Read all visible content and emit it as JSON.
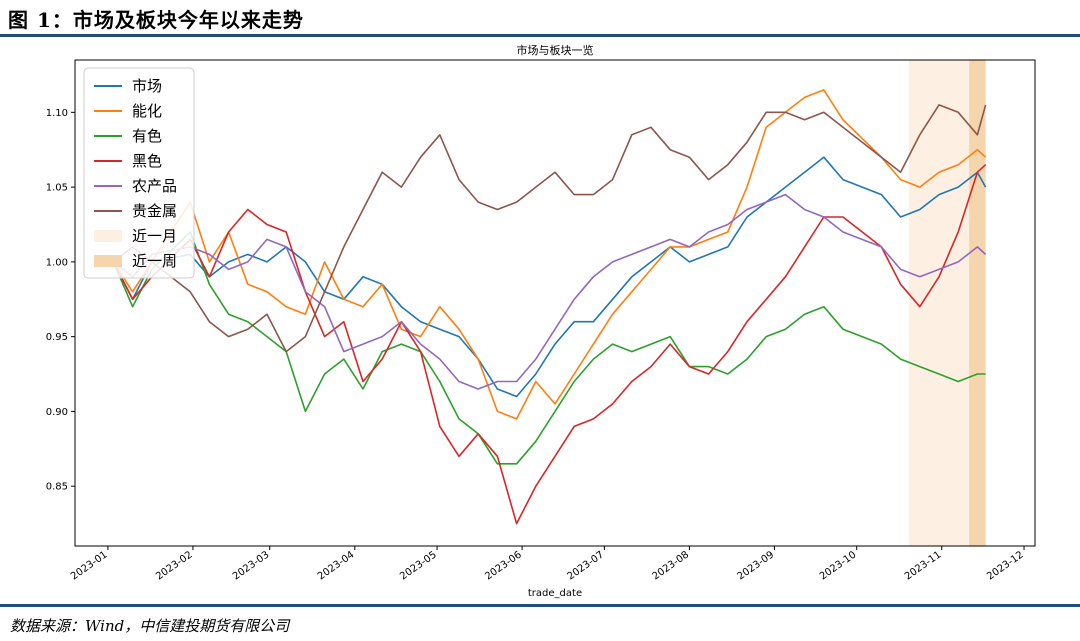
{
  "header": {
    "figure_title": "图 1：市场及板块今年以来走势"
  },
  "footer": {
    "source": "数据来源：Wind，中信建投期货有限公司"
  },
  "chart_data": {
    "type": "line",
    "title": "市场与板块一览",
    "xlabel": "trade_date",
    "ylabel": "",
    "x_ticks": [
      "2023-01",
      "2023-02",
      "2023-03",
      "2023-04",
      "2023-05",
      "2023-06",
      "2023-07",
      "2023-08",
      "2023-09",
      "2023-10",
      "2023-11",
      "2023-12"
    ],
    "y_ticks": [
      "0.85",
      "0.90",
      "0.95",
      "1.00",
      "1.05",
      "1.10"
    ],
    "ylim": [
      0.81,
      1.135
    ],
    "xlim": [
      "2022-12-20",
      "2023-12-05"
    ],
    "grid": false,
    "legend_position": "top-left",
    "x": [
      "2023-01-03",
      "2023-01-10",
      "2023-01-17",
      "2023-01-31",
      "2023-02-07",
      "2023-02-14",
      "2023-02-21",
      "2023-02-28",
      "2023-03-07",
      "2023-03-14",
      "2023-03-21",
      "2023-03-28",
      "2023-04-04",
      "2023-04-11",
      "2023-04-18",
      "2023-04-25",
      "2023-05-02",
      "2023-05-09",
      "2023-05-16",
      "2023-05-23",
      "2023-05-30",
      "2023-06-06",
      "2023-06-13",
      "2023-06-20",
      "2023-06-27",
      "2023-07-04",
      "2023-07-11",
      "2023-07-18",
      "2023-07-25",
      "2023-08-01",
      "2023-08-08",
      "2023-08-15",
      "2023-08-22",
      "2023-08-29",
      "2023-09-05",
      "2023-09-12",
      "2023-09-19",
      "2023-09-26",
      "2023-10-10",
      "2023-10-17",
      "2023-10-24",
      "2023-10-31",
      "2023-11-07",
      "2023-11-14",
      "2023-11-17"
    ],
    "series": [
      {
        "name": "市场",
        "color": "#1f77b4",
        "values": [
          1.0,
          0.975,
          1.0,
          1.005,
          0.99,
          1.0,
          1.005,
          1.0,
          1.01,
          1.0,
          0.98,
          0.975,
          0.99,
          0.985,
          0.97,
          0.96,
          0.955,
          0.95,
          0.935,
          0.915,
          0.91,
          0.925,
          0.945,
          0.96,
          0.96,
          0.975,
          0.99,
          1.0,
          1.01,
          1.0,
          1.005,
          1.01,
          1.03,
          1.04,
          1.05,
          1.06,
          1.07,
          1.055,
          1.045,
          1.03,
          1.035,
          1.045,
          1.05,
          1.06,
          1.05
        ]
      },
      {
        "name": "能化",
        "color": "#ff7f0e",
        "values": [
          1.0,
          0.98,
          1.0,
          1.04,
          1.0,
          1.02,
          0.985,
          0.98,
          0.97,
          0.965,
          1.0,
          0.975,
          0.97,
          0.985,
          0.955,
          0.95,
          0.97,
          0.955,
          0.935,
          0.9,
          0.895,
          0.92,
          0.905,
          0.925,
          0.945,
          0.965,
          0.98,
          0.995,
          1.01,
          1.01,
          1.015,
          1.02,
          1.05,
          1.09,
          1.1,
          1.11,
          1.115,
          1.095,
          1.07,
          1.055,
          1.05,
          1.06,
          1.065,
          1.075,
          1.07
        ]
      },
      {
        "name": "有色",
        "color": "#2ca02c",
        "values": [
          1.0,
          0.97,
          0.995,
          1.02,
          0.985,
          0.965,
          0.96,
          0.95,
          0.94,
          0.9,
          0.925,
          0.935,
          0.915,
          0.94,
          0.945,
          0.94,
          0.92,
          0.895,
          0.885,
          0.865,
          0.865,
          0.88,
          0.9,
          0.92,
          0.935,
          0.945,
          0.94,
          0.945,
          0.95,
          0.93,
          0.93,
          0.925,
          0.935,
          0.95,
          0.955,
          0.965,
          0.97,
          0.955,
          0.945,
          0.935,
          0.93,
          0.925,
          0.92,
          0.925,
          0.925
        ]
      },
      {
        "name": "黑色",
        "color": "#d62728",
        "values": [
          1.0,
          0.975,
          0.99,
          1.015,
          0.99,
          1.02,
          1.035,
          1.025,
          1.02,
          0.98,
          0.95,
          0.96,
          0.92,
          0.935,
          0.96,
          0.94,
          0.89,
          0.87,
          0.885,
          0.87,
          0.825,
          0.85,
          0.87,
          0.89,
          0.895,
          0.905,
          0.92,
          0.93,
          0.945,
          0.93,
          0.925,
          0.94,
          0.96,
          0.975,
          0.99,
          1.01,
          1.03,
          1.03,
          1.01,
          0.985,
          0.97,
          0.99,
          1.02,
          1.06,
          1.065
        ]
      },
      {
        "name": "农产品",
        "color": "#9467bd",
        "values": [
          1.0,
          0.99,
          1.005,
          1.01,
          1.005,
          0.995,
          1.0,
          1.015,
          1.01,
          0.98,
          0.97,
          0.94,
          0.945,
          0.95,
          0.96,
          0.945,
          0.935,
          0.92,
          0.915,
          0.92,
          0.92,
          0.935,
          0.955,
          0.975,
          0.99,
          1.0,
          1.005,
          1.01,
          1.015,
          1.01,
          1.02,
          1.025,
          1.035,
          1.04,
          1.045,
          1.035,
          1.03,
          1.02,
          1.01,
          0.995,
          0.99,
          0.995,
          1.0,
          1.01,
          1.005
        ]
      },
      {
        "name": "贵金属",
        "color": "#8c564b",
        "values": [
          1.0,
          1.01,
          1.0,
          0.98,
          0.96,
          0.95,
          0.955,
          0.965,
          0.94,
          0.95,
          0.98,
          1.01,
          1.035,
          1.06,
          1.05,
          1.07,
          1.085,
          1.055,
          1.04,
          1.035,
          1.04,
          1.05,
          1.06,
          1.045,
          1.045,
          1.055,
          1.085,
          1.09,
          1.075,
          1.07,
          1.055,
          1.065,
          1.08,
          1.1,
          1.1,
          1.095,
          1.1,
          1.09,
          1.07,
          1.06,
          1.085,
          1.105,
          1.1,
          1.085,
          1.105
        ]
      }
    ],
    "shaded_regions": [
      {
        "name": "近一月",
        "color": "#fdf0e2",
        "start": "2023-10-20",
        "end": "2023-11-17"
      },
      {
        "name": "近一周",
        "color": "#f5d5ad",
        "start": "2023-11-11",
        "end": "2023-11-17"
      }
    ]
  }
}
